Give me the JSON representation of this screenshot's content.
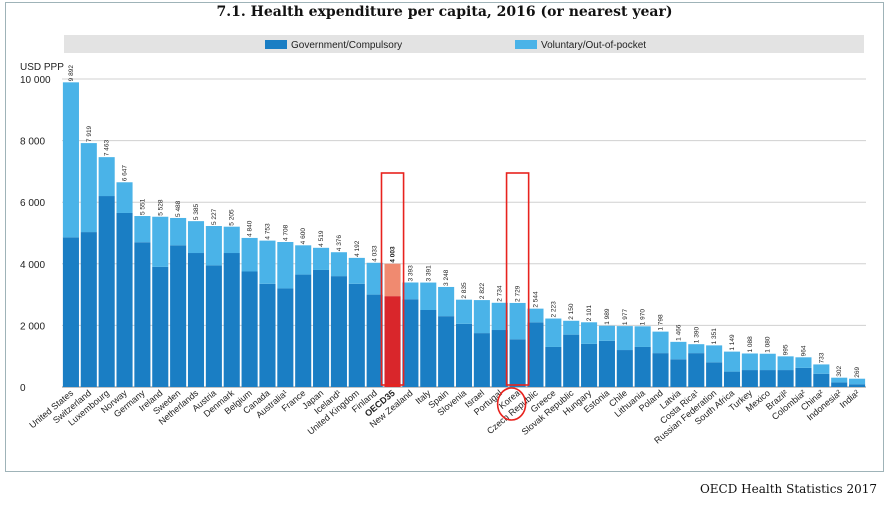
{
  "title": "7.1. Health expenditure per capita, 2016 (or nearest year)",
  "source": "OECD Health Statistics 2017",
  "colors": {
    "government": "#1a7ec4",
    "voluntary": "#4ab3e8",
    "oecd_government": "#d9262b",
    "oecd_voluntary": "#f08a70",
    "highlight_box": "#e8231e",
    "legend_bg": "#e3e3e3",
    "grid": "#d0d0d0",
    "plot_bg": "#ffffff"
  },
  "chart_data": {
    "type": "bar",
    "stacked": true,
    "ylabel": "USD PPP",
    "ylim": [
      0,
      10000
    ],
    "yticks": [
      0,
      2000,
      4000,
      6000,
      8000,
      10000
    ],
    "ytick_labels": [
      "0",
      "2 000",
      "4 000",
      "6 000",
      "8 000",
      "10 000"
    ],
    "grid": true,
    "legend_position": "top",
    "series": [
      {
        "name": "Government/Compulsory",
        "values": [
          4860,
          5030,
          6200,
          5650,
          4700,
          3900,
          4600,
          4350,
          3950,
          4350,
          3750,
          3350,
          3200,
          3650,
          3800,
          3600,
          3350,
          3000,
          2950,
          2850,
          2500,
          2300,
          2050,
          1750,
          1850,
          1550,
          2100,
          1300,
          1700,
          1400,
          1500,
          1200,
          1300,
          1100,
          900,
          1100,
          800,
          500,
          550,
          550,
          550,
          620,
          430,
          150,
          90
        ]
      },
      {
        "name": "Voluntary/Out-of-pocket",
        "values": [
          5032,
          2889,
          1263,
          997,
          851,
          1628,
          888,
          1035,
          1277,
          855,
          1090,
          1403,
          1508,
          950,
          719,
          776,
          842,
          1033,
          1053,
          543,
          891,
          948,
          785,
          1072,
          884,
          1179,
          444,
          923,
          450,
          701,
          489,
          777,
          670,
          698,
          566,
          290,
          551,
          649,
          538,
          530,
          445,
          344,
          303,
          152,
          179
        ]
      }
    ],
    "categories": [
      "United States",
      "Switzerland",
      "Luxembourg",
      "Norway",
      "Germany",
      "Ireland",
      "Sweden",
      "Netherlands",
      "Austria",
      "Denmark",
      "Belgium",
      "Canada",
      "Australia¹",
      "France",
      "Japan",
      "Iceland¹",
      "United Kingdom",
      "Finland",
      "OECD35",
      "New Zealand",
      "Italy",
      "Spain",
      "Slovenia",
      "Israel",
      "Portugal",
      "Korea",
      "Czech Republic",
      "Greece",
      "Slovak Republic",
      "Hungary",
      "Estonia",
      "Chile",
      "Lithuania",
      "Poland",
      "Latvia",
      "Costa Rica¹",
      "Russian Federation",
      "South Africa",
      "Turkey",
      "Mexico",
      "Brazil²",
      "Colombia²",
      "China²",
      "Indonesia²",
      "India²"
    ],
    "total_labels": [
      "9 892",
      "7 919",
      "7 463",
      "6 647",
      "5 551",
      "5 528",
      "5 488",
      "5 385",
      "5 227",
      "5 205",
      "4 840",
      "4 753",
      "4 708",
      "4 600",
      "4 519",
      "4 376",
      "4 192",
      "4 033",
      "4 003",
      "3 393",
      "3 391",
      "3 248",
      "2 835",
      "2 822",
      "2 734",
      "2 729",
      "2 544",
      "2 223",
      "2 150",
      "2 101",
      "1 989",
      "1 977",
      "1 970",
      "1 798",
      "1 466",
      "1 390",
      "1 351",
      "1 149",
      "1 088",
      "1 080",
      "995",
      "964",
      "733",
      "302",
      "269"
    ],
    "highlighted": [
      "OECD35",
      "Korea"
    ]
  }
}
